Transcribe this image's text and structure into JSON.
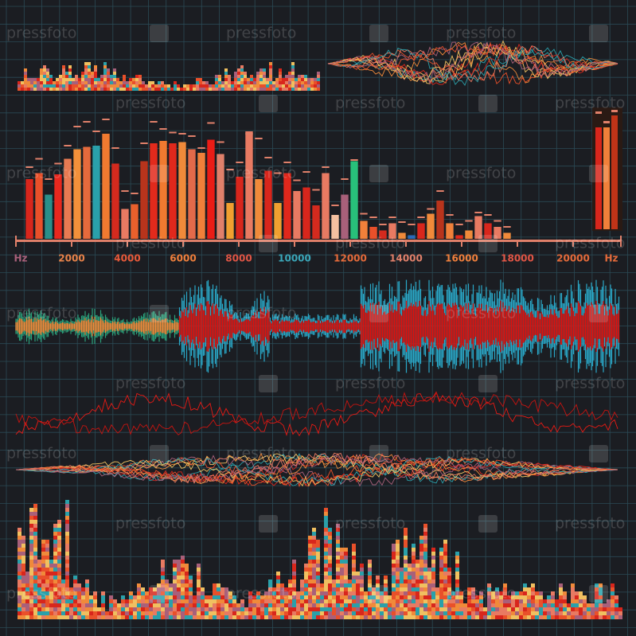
{
  "chart_data": {
    "type": "bar",
    "watermark": "pressfoto",
    "xlabel": "Hz",
    "xlim": [
      0,
      21714
    ],
    "xticks": [
      2000,
      4000,
      6000,
      8000,
      10000,
      12000,
      14000,
      16000,
      18000,
      20000
    ],
    "ylim": [
      0,
      100
    ],
    "axis_color": "#e0806a",
    "tick_label_colors": [
      "#e8834a",
      "#e85a3a",
      "#ef7f3c",
      "#e05545",
      "#3aa6b8",
      "#e46a3a",
      "#e0806a",
      "#ef7f3c",
      "#e05545",
      "#e46a3a"
    ],
    "x": [
      486,
      829,
      1171,
      1514,
      1857,
      2200,
      2543,
      2886,
      3229,
      3571,
      3914,
      4257,
      4600,
      4943,
      5286,
      5629,
      5971,
      6314,
      6657,
      7000,
      7343,
      7686,
      8029,
      8371,
      8714,
      9057,
      9400,
      9743,
      10086,
      10429,
      10771,
      11114,
      11457,
      11800,
      12143,
      12486,
      12829,
      13171,
      13514,
      13857,
      14200,
      14543,
      14886,
      15229,
      15571,
      15914,
      16257,
      16600,
      16943,
      17286,
      17629
    ],
    "values": [
      50,
      55,
      37,
      54,
      67,
      75,
      77,
      78,
      88,
      63,
      25,
      29,
      65,
      80,
      82,
      80,
      81,
      75,
      72,
      83,
      71,
      30,
      52,
      90,
      50,
      57,
      30,
      55,
      40,
      43,
      28,
      55,
      20,
      37,
      65,
      15,
      10,
      7,
      13,
      5,
      3,
      13,
      21,
      32,
      13,
      3,
      7,
      19,
      13,
      10,
      5
    ],
    "peak_values": [
      60,
      67,
      50,
      63,
      78,
      94,
      98,
      90,
      100,
      76,
      40,
      38,
      80,
      98,
      92,
      89,
      88,
      86,
      76,
      97,
      81,
      58,
      64,
      88,
      84,
      68,
      55,
      64,
      49,
      56,
      41,
      60,
      28,
      50,
      66,
      21,
      18,
      12,
      18,
      14,
      12,
      18,
      25,
      40,
      20,
      12,
      15,
      22,
      20,
      15,
      10
    ],
    "peak_color": "#e0806a",
    "colors": [
      "#d8261c",
      "#e9502a",
      "#2a8f8a",
      "#e8281e",
      "#e87a52",
      "#f2903a",
      "#e56a3c",
      "#2aa0aa",
      "#f07a30",
      "#d42a1e",
      "#e87a62",
      "#e9602c",
      "#b8341c",
      "#e22a1c",
      "#f07a30",
      "#e0281c",
      "#f08a3a",
      "#e36a4a",
      "#f0803a",
      "#ea1c16",
      "#e0806a",
      "#f0a030",
      "#d8261c",
      "#e87a62",
      "#f08a3a",
      "#d8261c",
      "#f0a030",
      "#e0281c",
      "#e87a62",
      "#d8261c",
      "#d42a1e",
      "#e87a62",
      "#f4c0a0",
      "#a8607a",
      "#28c07a",
      "#f0803a",
      "#e9502a",
      "#d42a1e",
      "#e87a62",
      "#f08a3a",
      "#2a6ab8",
      "#d8261c",
      "#f08a3a",
      "#b8341c",
      "#f0803a",
      "#e0281c",
      "#f08a3a",
      "#e87a62",
      "#d8261c",
      "#e87a62",
      "#f08a3a"
    ]
  }
}
